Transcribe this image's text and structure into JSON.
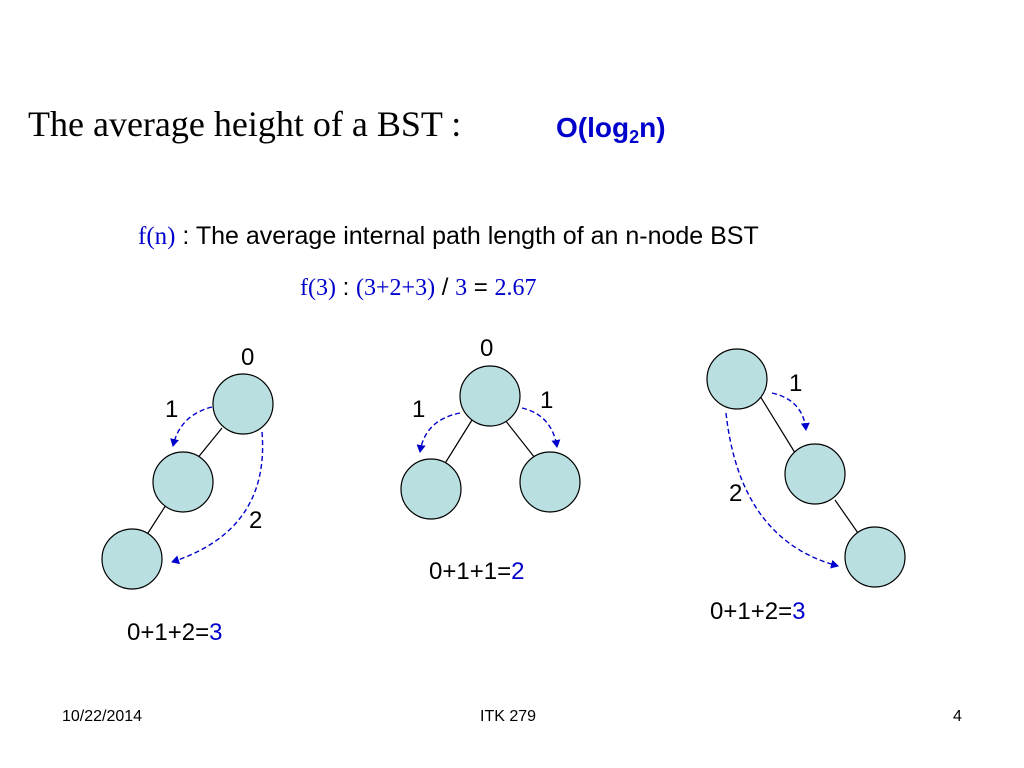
{
  "slide": {
    "title": "The average height of a BST :",
    "bigo_prefix": "O(log",
    "bigo_sub": "2",
    "bigo_suffix": "n)",
    "definition_term": "f(n)",
    "definition_sep": " : ",
    "definition_text": "The average internal path length of an n-node BST",
    "example_term": "f(3)",
    "example_sep": " : ",
    "example_expr": "(3+2+3)",
    "example_div": " / ",
    "example_n": "3",
    "example_eq": " = ",
    "example_result": "2.67"
  },
  "trees": [
    {
      "labels": [
        "0",
        "1",
        "2"
      ],
      "sum_prefix": "0+1+2=",
      "sum_result": "3"
    },
    {
      "labels": [
        "0",
        "1",
        "1"
      ],
      "sum_prefix": "0+1+1=",
      "sum_result": "2"
    },
    {
      "labels": [
        "1",
        "2"
      ],
      "sum_prefix": "0+1+2=",
      "sum_result": "3"
    }
  ],
  "footer": {
    "date": "10/22/2014",
    "course": "ITK 279",
    "page": "4"
  },
  "colors": {
    "node_fill": "#b9dfe0",
    "node_stroke": "#000000",
    "arrow": "#0000cc",
    "accent_text": "#0000cc"
  }
}
